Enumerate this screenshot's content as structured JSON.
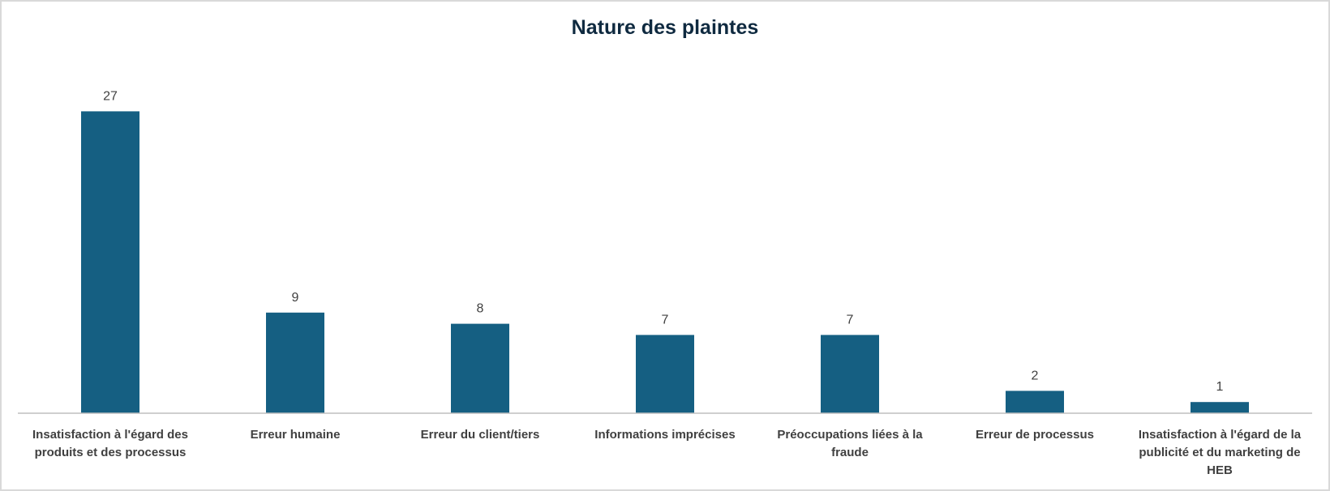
{
  "chart_data": {
    "type": "bar",
    "title": "Nature des plaintes",
    "categories": [
      "Insatisfaction à l'égard des produits et des processus",
      "Erreur humaine",
      "Erreur du client/tiers",
      "Informations imprécises",
      "Préoccupations liées à la fraude",
      "Erreur de processus",
      "Insatisfaction à l'égard de la publicité et du marketing de HEB"
    ],
    "category_lines": [
      [
        "Insatisfaction à l'égard des",
        "produits et des processus"
      ],
      [
        "Erreur humaine"
      ],
      [
        "Erreur du client/tiers"
      ],
      [
        "Informations imprécises"
      ],
      [
        "Préoccupations liées à la",
        "fraude"
      ],
      [
        "Erreur de processus"
      ],
      [
        "Insatisfaction à l'égard de la",
        "publicité et du marketing de",
        "HEB"
      ]
    ],
    "values": [
      27,
      9,
      8,
      7,
      7,
      2,
      1
    ],
    "ylim": [
      0,
      30
    ],
    "grid": false,
    "legend": "none",
    "bar_color": "#155f82"
  }
}
